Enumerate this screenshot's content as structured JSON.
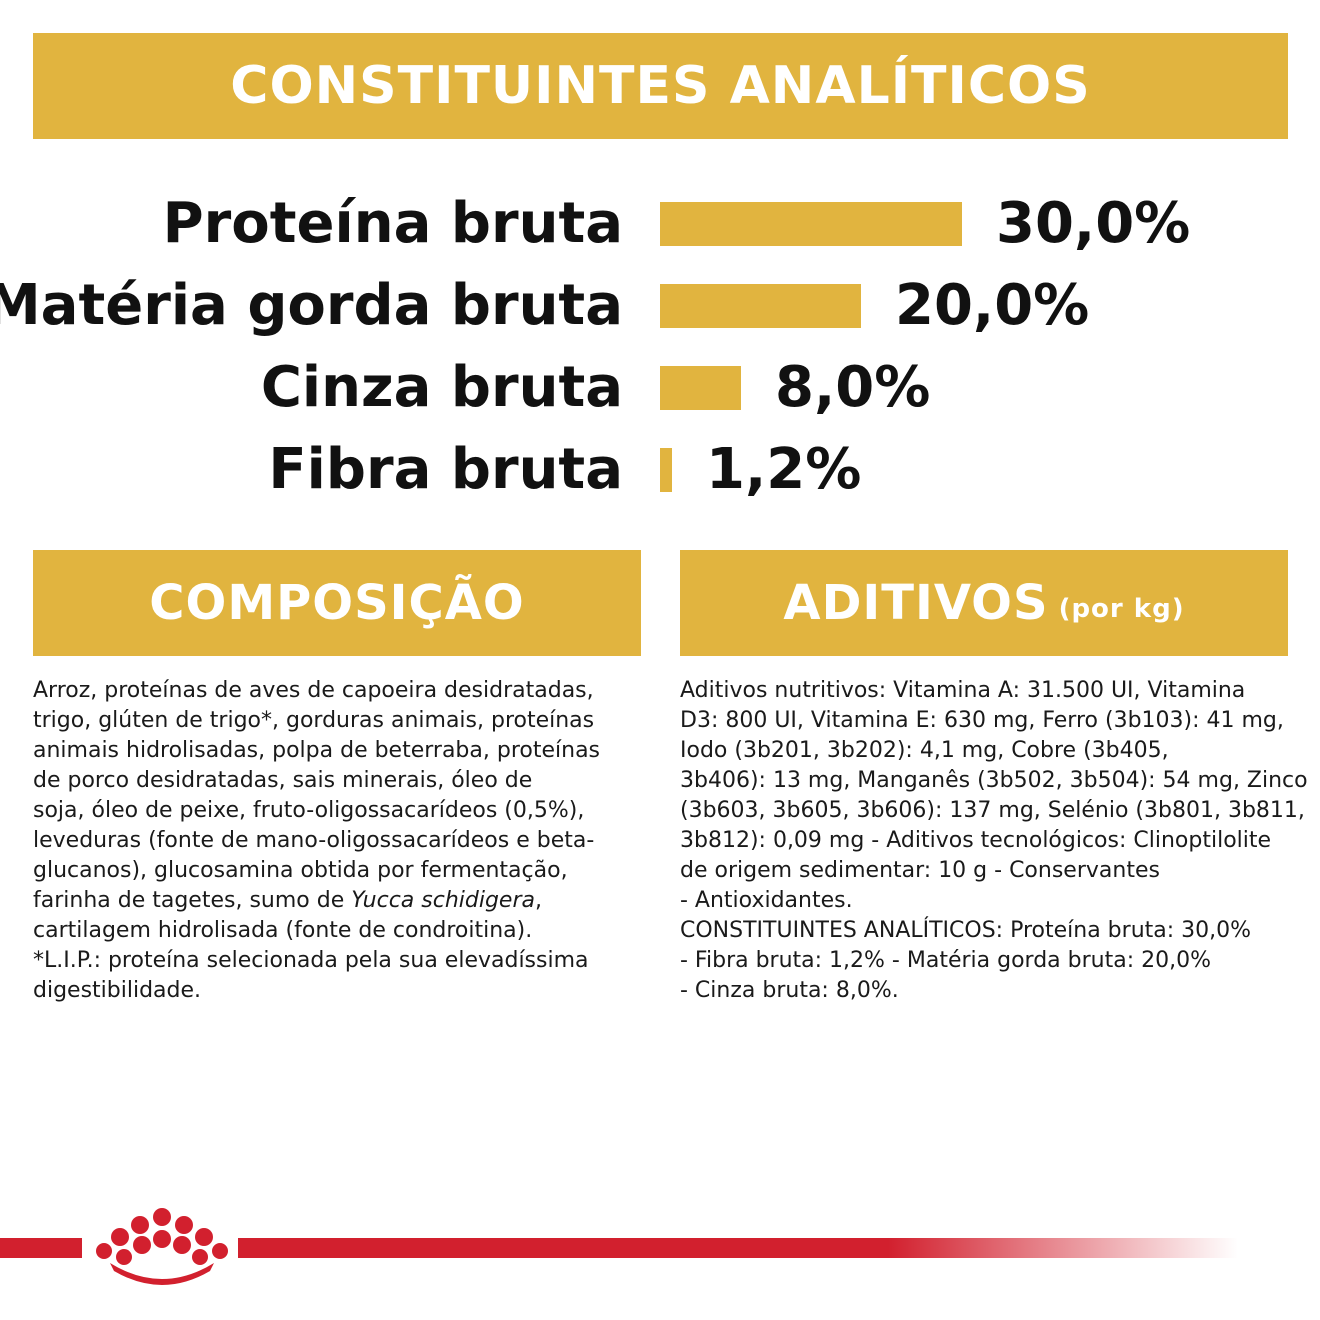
{
  "header": {
    "title": "CONSTITUINTES ANALÍTICOS"
  },
  "analytics": {
    "rows": [
      {
        "label": "Proteína bruta",
        "value": 30.0,
        "value_text": "30,0%"
      },
      {
        "label": "Matéria gorda bruta",
        "value": 20.0,
        "value_text": "20,0%"
      },
      {
        "label": "Cinza bruta",
        "value": 8.0,
        "value_text": "8,0%"
      },
      {
        "label": "Fibra bruta",
        "value": 1.2,
        "value_text": "1,2%"
      }
    ],
    "bar_color": "#e1b43f"
  },
  "composicao": {
    "title": "COMPOSIÇÃO",
    "lines": [
      "Arroz, proteínas de aves de capoeira desidratadas,",
      "trigo, glúten de trigo*, gorduras animais, proteínas",
      "animais hidrolisadas, polpa de beterraba, proteínas",
      "de porco desidratadas, sais minerais, óleo de",
      "soja, óleo de peixe, fruto-oligossacarídeos (0,5%),",
      "leveduras (fonte de mano-oligossacarídeos e beta-",
      "glucanos), glucosamina obtida por fermentação,",
      "farinha de tagetes, sumo de ",
      "cartilagem hidrolisada (fonte de condroitina).",
      "*L.I.P.: proteína selecionada pela sua elevadíssima",
      "digestibilidade."
    ],
    "italic_term": "Yucca schidigera",
    "italic_suffix": ","
  },
  "aditivos": {
    "title": "ADITIVOS",
    "title_suffix": "(por kg)",
    "lines": [
      "Aditivos nutritivos: Vitamina A: 31.500 UI, Vitamina",
      "D3: 800 UI, Vitamina E: 630 mg, Ferro (3b103): 41 mg,",
      "Iodo (3b201, 3b202): 4,1 mg, Cobre (3b405,",
      "3b406): 13 mg, Manganês (3b502, 3b504): 54 mg, Zinco",
      "(3b603, 3b605, 3b606): 137 mg, Selénio (3b801, 3b811,",
      "3b812): 0,09 mg - Aditivos tecnológicos: Clinoptilolite",
      "de origem sedimentar: 10 g - Conservantes",
      "- Antioxidantes.",
      "CONSTITUINTES ANALÍTICOS: Proteína bruta: 30,0%",
      "- Fibra bruta: 1,2% - Matéria gorda bruta: 20,0%",
      "- Cinza bruta: 8,0%."
    ]
  },
  "footer": {
    "logo_icon": "crown-icon",
    "brand_color": "#d2202e"
  }
}
